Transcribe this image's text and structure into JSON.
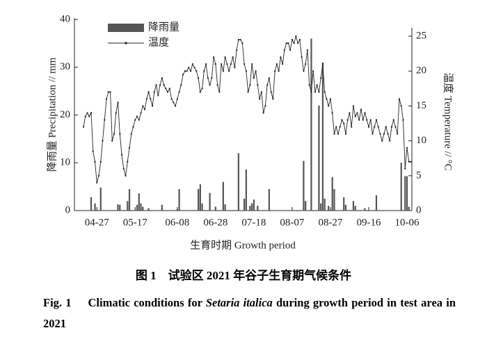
{
  "chart_data": {
    "type": "bar+line",
    "ylabel": "降雨量 Precipitation // mm",
    "y2label": "温度 Temperature // °C",
    "xlabel": "生育时期 Growth period",
    "ylim": [
      0,
      40
    ],
    "yticks": [
      0,
      10,
      20,
      30,
      40
    ],
    "y2lim": [
      0,
      27.4
    ],
    "y2ticks": [
      0,
      5,
      10,
      15,
      20,
      25
    ],
    "categories": [
      null,
      null,
      null,
      null,
      null,
      null,
      null,
      "04-27",
      null,
      null,
      null,
      null,
      null,
      null,
      null,
      null,
      null,
      null,
      null,
      null,
      null,
      null,
      null,
      null,
      null,
      null,
      null,
      "05-17",
      null,
      null,
      null,
      null,
      null,
      null,
      null,
      null,
      null,
      null,
      null,
      null,
      null,
      null,
      null,
      null,
      null,
      null,
      null,
      null,
      null,
      "06-08",
      null,
      null,
      null,
      null,
      null,
      null,
      null,
      null,
      null,
      null,
      null,
      null,
      null,
      null,
      null,
      null,
      null,
      null,
      null,
      "06-28",
      null,
      null,
      null,
      null,
      null,
      null,
      null,
      null,
      null,
      null,
      null,
      null,
      null,
      null,
      null,
      null,
      null,
      null,
      null,
      "07-18",
      null,
      null,
      null,
      null,
      null,
      null,
      null,
      null,
      null,
      null,
      null,
      null,
      null,
      null,
      null,
      null,
      null,
      null,
      null,
      "08-07",
      null,
      null,
      null,
      null,
      null,
      null,
      null,
      null,
      null,
      null,
      null,
      null,
      null,
      null,
      null,
      null,
      null,
      null,
      null,
      "08-27",
      null,
      null,
      null,
      null,
      null,
      null,
      null,
      null,
      null,
      null,
      null,
      null,
      null,
      null,
      null,
      null,
      null,
      null,
      null,
      "09-16",
      null,
      null,
      null,
      null,
      null,
      null,
      null,
      null,
      null,
      null,
      null,
      null,
      null,
      null,
      null,
      null,
      null,
      null,
      null,
      "10-06",
      null,
      null
    ],
    "series": [
      {
        "name": "降雨量",
        "color": "#555555",
        "type": "bar",
        "values": [
          0,
          0,
          0,
          0,
          2.8,
          0,
          1.5,
          0,
          0,
          4.8,
          0,
          0,
          0,
          0,
          0,
          0,
          0,
          0,
          1.3,
          1.2,
          0,
          0,
          0,
          2,
          4.5,
          0,
          0,
          0,
          1.2,
          3.6,
          1.5,
          0.8,
          0,
          0,
          0.5,
          0,
          0,
          0,
          0,
          0,
          0,
          1.2,
          0,
          0,
          0,
          0,
          0,
          0,
          0,
          0.3,
          4.5,
          0,
          0,
          0,
          0,
          0,
          0,
          0,
          0,
          0,
          4.5,
          5.5,
          1.5,
          0,
          0,
          0,
          3.7,
          0,
          0,
          0.8,
          0,
          0,
          0,
          6,
          1.3,
          0,
          0,
          0,
          0,
          0,
          0,
          12,
          0,
          0,
          2.5,
          8.6,
          0,
          1,
          1.5,
          2.3,
          0,
          1,
          0,
          0,
          0,
          0,
          0,
          4.5,
          0,
          0,
          0,
          0,
          0,
          0,
          0,
          0,
          0,
          0,
          0,
          0,
          0,
          0,
          0,
          0,
          0,
          10.4,
          2,
          0,
          0,
          36,
          0,
          0,
          0,
          22,
          1.5,
          31,
          2.5,
          0,
          1,
          0,
          7,
          4.5,
          0,
          0,
          0,
          0,
          2.8,
          1.2,
          0,
          0,
          0,
          2,
          1,
          0,
          0,
          0,
          0,
          0.5,
          0,
          0,
          0,
          0,
          0,
          3.2,
          0,
          0,
          0,
          0,
          0,
          0,
          0,
          0,
          0,
          0,
          0,
          0,
          10,
          0,
          7.2,
          7.2,
          0.8,
          0
        ]
      },
      {
        "name": "温度",
        "color": "#222222",
        "type": "line",
        "axis": "y2",
        "values": [
          12,
          13.5,
          14,
          13.5,
          14,
          8.5,
          7,
          4,
          5,
          7,
          10,
          13,
          16,
          17,
          17,
          10,
          11,
          14,
          15.5,
          11,
          8,
          6,
          5,
          7,
          9,
          11,
          12,
          13,
          13.5,
          13,
          14,
          15,
          14.5,
          16,
          17,
          16,
          15,
          17,
          18,
          16.5,
          18,
          19,
          18,
          17.5,
          17,
          17.5,
          16,
          15.5,
          15,
          16,
          17,
          18,
          19.5,
          20,
          20,
          20.5,
          20,
          21,
          20.5,
          20,
          19,
          17,
          17.5,
          20,
          21,
          19,
          18,
          19,
          22,
          21,
          18,
          17,
          21,
          20,
          22,
          21,
          20,
          21,
          22,
          20.5,
          23,
          24.5,
          24.5,
          24,
          21,
          20,
          17,
          18,
          21,
          19,
          20,
          18,
          16,
          17,
          14,
          15,
          18,
          19,
          17,
          16,
          20,
          21,
          20,
          22,
          21,
          23,
          24,
          24,
          23,
          24.5,
          24,
          25,
          24,
          24.5,
          22,
          20,
          21,
          23,
          18,
          17,
          20,
          17,
          18,
          17,
          19,
          21,
          17,
          16,
          15,
          16,
          14,
          11,
          12,
          11,
          12,
          13,
          12.5,
          11,
          13,
          14,
          12,
          15,
          13.5,
          14,
          13,
          14.5,
          13,
          14,
          13,
          12,
          13,
          11,
          12,
          13,
          12,
          11,
          10,
          11,
          12,
          11,
          10,
          12,
          13,
          12,
          11,
          16,
          15,
          13,
          6,
          9,
          7,
          7
        ]
      }
    ]
  },
  "caption": {
    "cn": "图 1　试验区 2021 年谷子生育期气候条件",
    "en_label": "Fig. 1",
    "en_pre": "Climatic conditions for ",
    "en_italic": "Setaria italica",
    "en_post": " during growth period in test area in 2021"
  }
}
